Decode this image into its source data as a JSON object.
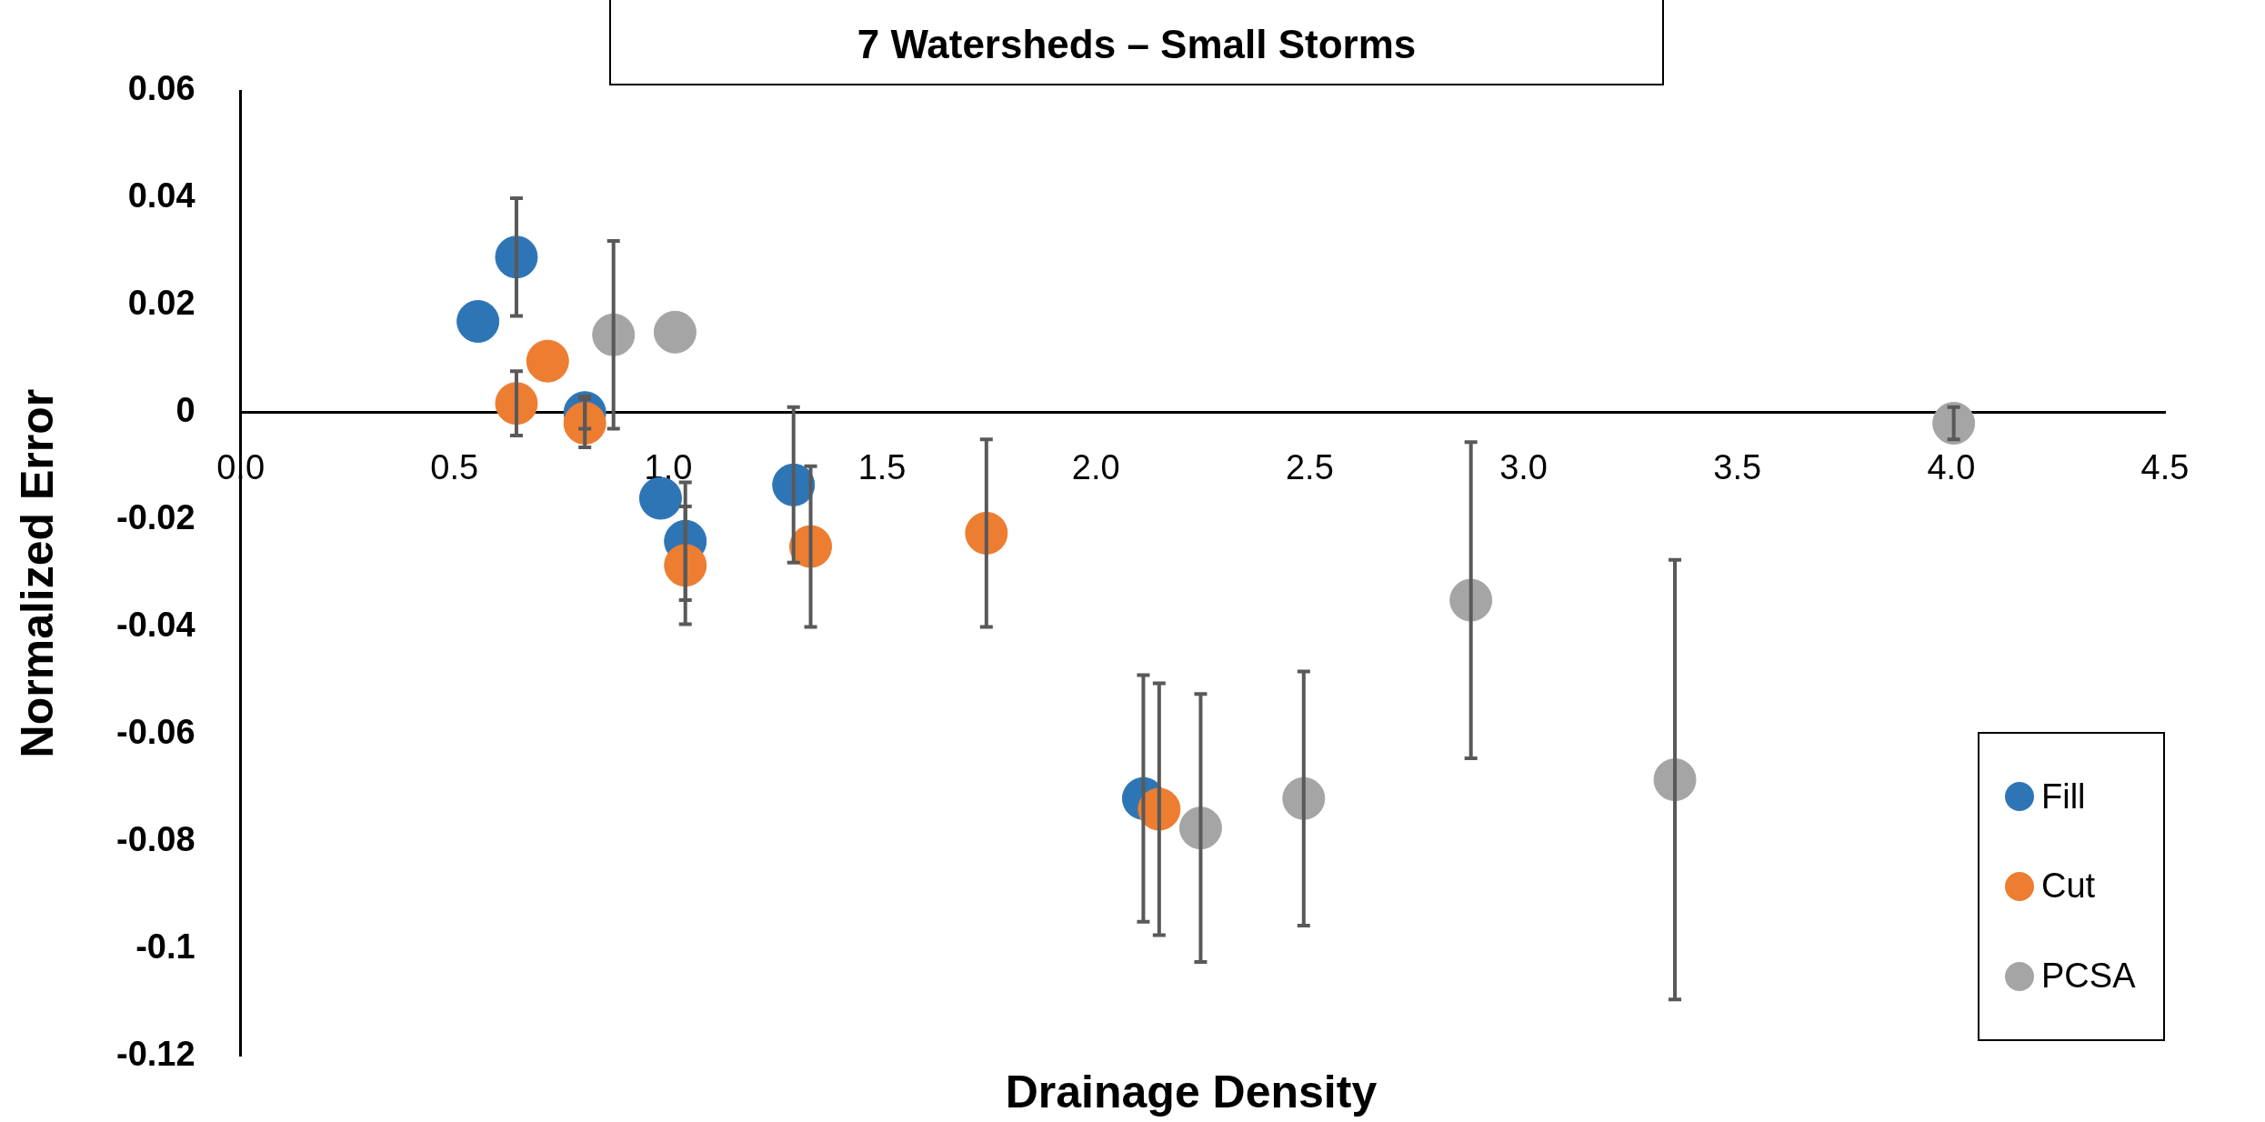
{
  "chart_data": {
    "type": "scatter",
    "title": "7 Watersheds – Small Storms",
    "xlabel": "Drainage Density",
    "ylabel": "Normalized Error",
    "xlim": [
      0,
      4.5
    ],
    "xticks": [
      {
        "value": 0,
        "label": "0.0"
      },
      {
        "value": 0.5,
        "label": "0.5"
      },
      {
        "value": 1,
        "label": "1.0"
      },
      {
        "value": 1.5,
        "label": "1.5"
      },
      {
        "value": 2,
        "label": "2.0"
      },
      {
        "value": 2.5,
        "label": "2.5"
      },
      {
        "value": 3,
        "label": "3.0"
      },
      {
        "value": 3.5,
        "label": "3.5"
      },
      {
        "value": 4,
        "label": "4.0"
      },
      {
        "value": 4.5,
        "label": "4.5"
      }
    ],
    "ylim": [
      -0.12,
      0.06
    ],
    "yticks": [
      -0.12,
      -0.1,
      -0.08,
      -0.06,
      -0.04,
      -0.02,
      0,
      0.02,
      0.04,
      0.06
    ],
    "grid": false,
    "legend": "bottom right",
    "marker": "circle",
    "series": [
      {
        "name": "Fill",
        "color": "#2e75b6",
        "x": [
          0.555,
          0.645,
          0.805,
          0.982,
          1.04,
          1.293,
          2.111
        ],
        "values": [
          0.017,
          0.029,
          0,
          -0.016,
          -0.024,
          -0.0135,
          -0.072
        ],
        "errors": [
          null,
          0.011,
          0.003,
          null,
          0.011,
          0.0145,
          0.023
        ]
      },
      {
        "name": "Cut",
        "color": "#ed7d31",
        "x": [
          0.645,
          0.718,
          0.805,
          1.04,
          1.333,
          1.744,
          2.148
        ],
        "values": [
          0.0017,
          0.0096,
          -0.002,
          -0.0285,
          -0.025,
          -0.0225,
          -0.074
        ],
        "errors": [
          0.006,
          null,
          0.0045,
          0.011,
          0.015,
          0.0175,
          0.0235
        ]
      },
      {
        "name": "PCSA",
        "color": "#a5a5a5",
        "x": [
          0.872,
          1.016,
          2.245,
          2.486,
          2.877,
          3.354,
          4.006
        ],
        "values": [
          0.0145,
          0.015,
          -0.0775,
          -0.072,
          -0.035,
          -0.0685,
          -0.002
        ],
        "errors": [
          0.0175,
          null,
          0.025,
          0.0237,
          0.0295,
          0.041,
          0.003
        ]
      }
    ]
  }
}
